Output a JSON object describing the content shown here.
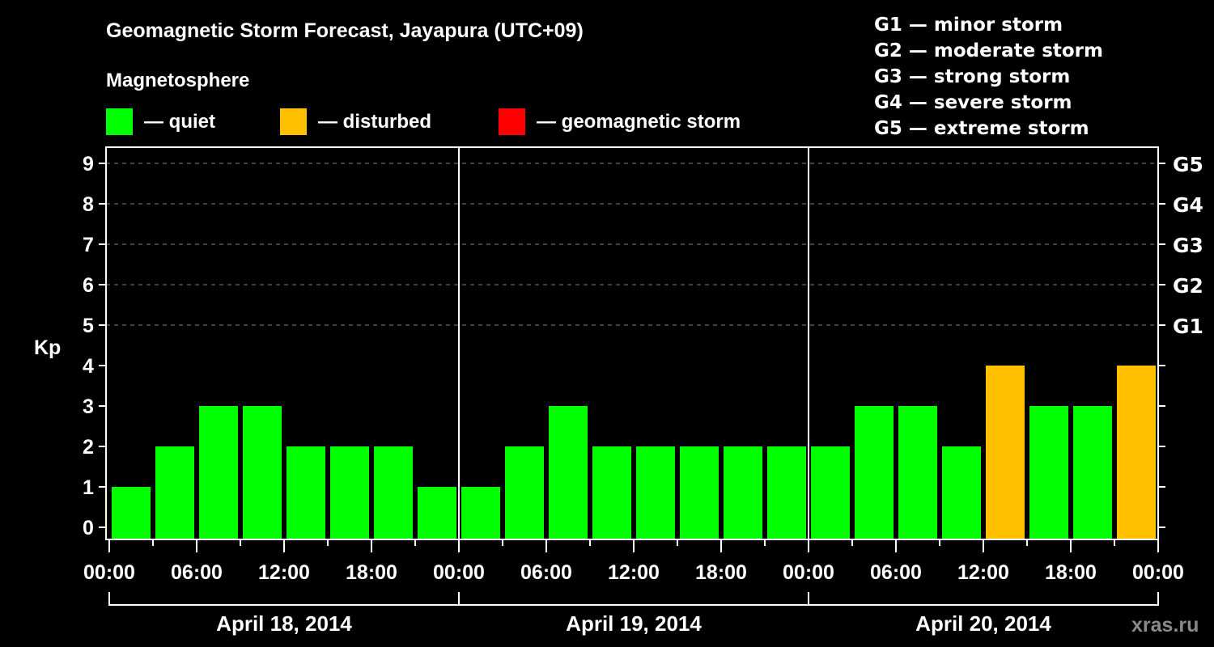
{
  "header": {
    "title": "Geomagnetic Storm Forecast, Jayapura (UTC+09)",
    "subtitle": "Magnetosphere"
  },
  "legend": [
    {
      "label": "— quiet",
      "color": "#00ff00"
    },
    {
      "label": "— disturbed",
      "color": "#ffc000"
    },
    {
      "label": "— geomagnetic storm",
      "color": "#ff0000"
    }
  ],
  "g_scale": [
    "G1 — minor storm",
    "G2 — moderate storm",
    "G3 — strong storm",
    "G4 — severe storm",
    "G5 — extreme storm"
  ],
  "watermark": "xras.ru",
  "colors": {
    "quiet": "#00ff00",
    "disturbed": "#ffc000",
    "storm": "#ff0000",
    "axis": "#ffffff",
    "grid": "#808080",
    "background": "#000000"
  },
  "chart_data": {
    "type": "bar",
    "title": "Geomagnetic Storm Forecast, Jayapura (UTC+09)",
    "xlabel": "",
    "ylabel": "Kp",
    "ylim": [
      0,
      9
    ],
    "yticks": [
      0,
      1,
      2,
      3,
      4,
      5,
      6,
      7,
      8,
      9
    ],
    "right_axis_labels": [
      {
        "kp": 5,
        "label": "G1"
      },
      {
        "kp": 6,
        "label": "G2"
      },
      {
        "kp": 7,
        "label": "G3"
      },
      {
        "kp": 8,
        "label": "G4"
      },
      {
        "kp": 9,
        "label": "G5"
      }
    ],
    "grid": "dashed horizontal at Kp 5-9",
    "xtick_labels": [
      "00:00",
      "06:00",
      "12:00",
      "18:00",
      "00:00",
      "06:00",
      "12:00",
      "18:00",
      "00:00",
      "06:00",
      "12:00",
      "18:00",
      "00:00"
    ],
    "days": [
      {
        "date": "April 18, 2014",
        "categories": [
          "00:00",
          "03:00",
          "06:00",
          "09:00",
          "12:00",
          "15:00",
          "18:00",
          "21:00"
        ],
        "values": [
          1,
          2,
          3,
          3,
          2,
          2,
          2,
          1
        ],
        "status": [
          "quiet",
          "quiet",
          "quiet",
          "quiet",
          "quiet",
          "quiet",
          "quiet",
          "quiet"
        ]
      },
      {
        "date": "April 19, 2014",
        "categories": [
          "00:00",
          "03:00",
          "06:00",
          "09:00",
          "12:00",
          "15:00",
          "18:00",
          "21:00"
        ],
        "values": [
          1,
          2,
          3,
          2,
          2,
          2,
          2,
          2
        ],
        "status": [
          "quiet",
          "quiet",
          "quiet",
          "quiet",
          "quiet",
          "quiet",
          "quiet",
          "quiet"
        ]
      },
      {
        "date": "April 20, 2014",
        "categories": [
          "00:00",
          "03:00",
          "06:00",
          "09:00",
          "12:00",
          "15:00",
          "18:00",
          "21:00"
        ],
        "values": [
          2,
          3,
          3,
          2,
          4,
          3,
          3,
          4
        ],
        "status": [
          "quiet",
          "quiet",
          "quiet",
          "quiet",
          "disturbed",
          "quiet",
          "quiet",
          "disturbed"
        ]
      }
    ]
  }
}
